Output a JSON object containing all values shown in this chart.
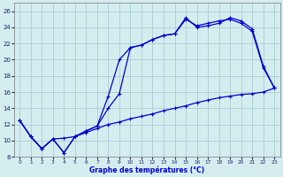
{
  "xlabel": "Graphe des températures (°C)",
  "bg_color": "#d4eef0",
  "grid_color": "#aaccd4",
  "line_color": "#0000cc",
  "ylim": [
    8,
    27
  ],
  "xlim": [
    -0.5,
    23.5
  ],
  "yticks": [
    8,
    10,
    12,
    14,
    16,
    18,
    20,
    22,
    24,
    26
  ],
  "xticks": [
    0,
    1,
    2,
    3,
    4,
    5,
    6,
    7,
    8,
    9,
    10,
    11,
    12,
    13,
    14,
    15,
    16,
    17,
    18,
    19,
    20,
    21,
    22,
    23
  ],
  "line1_x": [
    0,
    1,
    2,
    3,
    4,
    5,
    6,
    7,
    8,
    9,
    10,
    11,
    12,
    13,
    14,
    15,
    16,
    17,
    18,
    19,
    20,
    21,
    22,
    23
  ],
  "line1_y": [
    12.5,
    10.5,
    9.0,
    10.2,
    10.3,
    10.5,
    11.0,
    11.5,
    12.0,
    12.3,
    12.7,
    13.0,
    13.3,
    13.7,
    14.0,
    14.3,
    14.7,
    15.0,
    15.3,
    15.5,
    15.7,
    15.8,
    16.0,
    16.5
  ],
  "line2_x": [
    0,
    1,
    2,
    3,
    4,
    5,
    6,
    7,
    8,
    9,
    10,
    11,
    12,
    13,
    14,
    15,
    16,
    17,
    18,
    19,
    20,
    21,
    22,
    23
  ],
  "line2_y": [
    12.5,
    10.5,
    9.0,
    10.2,
    8.5,
    10.5,
    11.2,
    11.8,
    15.5,
    20.0,
    21.5,
    21.8,
    22.5,
    23.0,
    23.2,
    25.0,
    24.2,
    24.5,
    24.8,
    25.0,
    24.5,
    23.5,
    19.0,
    16.5
  ],
  "line3_x": [
    0,
    1,
    2,
    3,
    4,
    5,
    6,
    7,
    8,
    9,
    10,
    11,
    12,
    13,
    14,
    15,
    16,
    17,
    18,
    19,
    20,
    21,
    22,
    23
  ],
  "line3_y": [
    12.5,
    10.5,
    9.0,
    10.2,
    8.5,
    10.5,
    11.2,
    11.8,
    14.0,
    15.8,
    21.5,
    21.8,
    22.5,
    23.0,
    23.2,
    25.2,
    24.0,
    24.2,
    24.5,
    25.2,
    24.8,
    23.8,
    19.2,
    16.5
  ]
}
